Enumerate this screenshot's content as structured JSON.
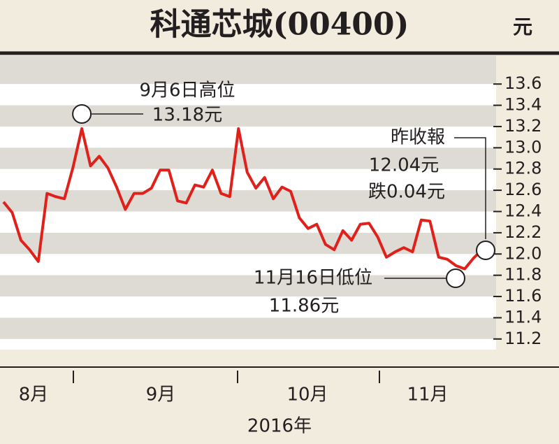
{
  "chart_data": {
    "type": "line",
    "title": "科通芯城(00400)",
    "unit": "元",
    "xlabel": "2016年",
    "months": [
      "8月",
      "9月",
      "10月",
      "11月"
    ],
    "series": [
      {
        "name": null,
        "color": "#e0211b",
        "values": [
          12.49,
          12.39,
          12.13,
          12.04,
          11.93,
          12.57,
          12.54,
          12.52,
          12.82,
          13.18,
          12.83,
          12.92,
          12.81,
          12.63,
          12.42,
          12.57,
          12.57,
          12.62,
          12.79,
          12.79,
          12.5,
          12.48,
          12.65,
          12.63,
          12.79,
          12.57,
          12.54,
          13.18,
          12.77,
          12.62,
          12.72,
          12.52,
          12.63,
          12.59,
          12.34,
          12.24,
          12.28,
          12.09,
          12.04,
          12.22,
          12.13,
          12.28,
          12.29,
          12.16,
          11.97,
          12.02,
          12.06,
          12.02,
          12.32,
          12.31,
          11.97,
          11.95,
          11.89,
          11.86,
          11.96,
          12.04
        ]
      }
    ],
    "ylim": [
      11.1,
      13.7
    ],
    "yticks": [
      11.2,
      11.4,
      11.6,
      11.8,
      {
        "value": 12,
        "label": "12.0"
      },
      12.2,
      12.4,
      12.6,
      12.8,
      {
        "value": 13,
        "label": "13.0"
      },
      13.2,
      13.4,
      13.6
    ],
    "annotations": [
      {
        "lines": [
          "9月6日高位",
          "13.18元"
        ],
        "index": 9
      },
      {
        "lines": [
          "昨收報",
          "12.04元",
          "跌0.04元"
        ],
        "index": 55
      },
      {
        "lines": [
          "11月16日低位",
          "11.86元"
        ],
        "index": 53
      }
    ]
  }
}
